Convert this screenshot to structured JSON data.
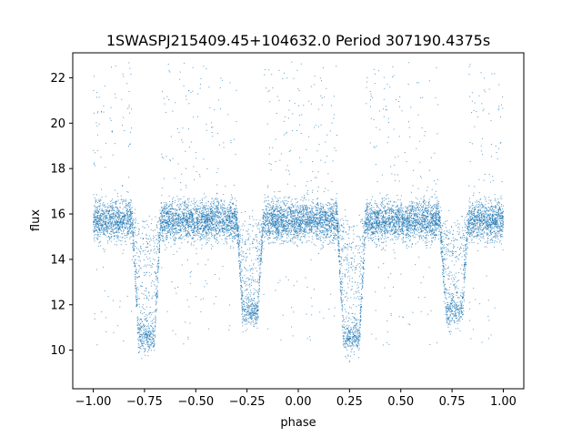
{
  "chart_data": {
    "type": "scatter",
    "title": "1SWASPJ215409.45+104632.0 Period 307190.4375s",
    "xlabel": "phase",
    "ylabel": "flux",
    "xlim": [
      -1.1,
      1.1
    ],
    "ylim": [
      8.3,
      23.1
    ],
    "xticks": [
      -1.0,
      -0.75,
      -0.5,
      -0.25,
      0.0,
      0.25,
      0.5,
      0.75,
      1.0
    ],
    "xtick_labels": [
      "−1.00",
      "−0.75",
      "−0.50",
      "−0.25",
      "0.00",
      "0.25",
      "0.50",
      "0.75",
      "1.00"
    ],
    "yticks": [
      10,
      12,
      14,
      16,
      18,
      20,
      22
    ],
    "ytick_labels": [
      "10",
      "12",
      "14",
      "16",
      "18",
      "20",
      "22"
    ],
    "grid": false,
    "marker_color": "#1f77b4",
    "baseline_flux": 15.7,
    "baseline_scatter": 0.45,
    "eclipses": [
      {
        "phase_start": -0.81,
        "phase_end": -0.67,
        "min_flux": 10.6
      },
      {
        "phase_start": -0.3,
        "phase_end": -0.17,
        "min_flux": 11.7
      },
      {
        "phase_start": 0.19,
        "phase_end": 0.33,
        "min_flux": 10.6
      },
      {
        "phase_start": 0.69,
        "phase_end": 0.83,
        "min_flux": 11.7
      }
    ],
    "phase_range": [
      -1.0,
      1.0
    ]
  }
}
